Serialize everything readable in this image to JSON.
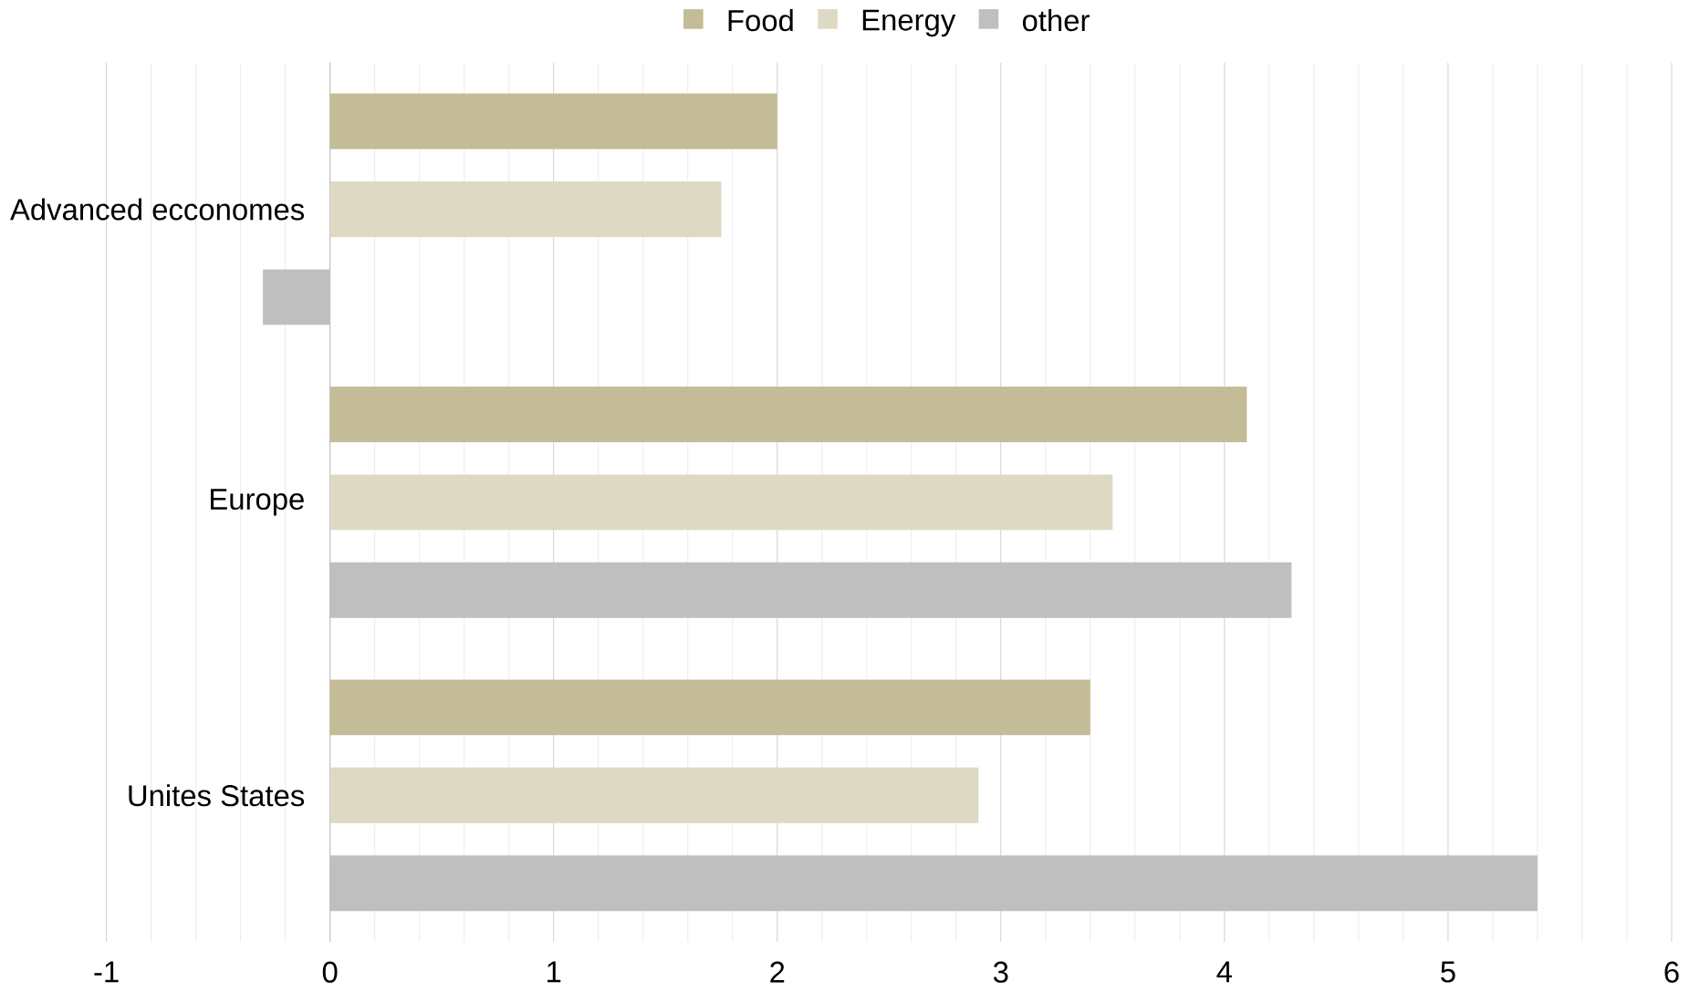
{
  "chart_data": {
    "type": "bar",
    "orientation": "horizontal",
    "categories": [
      "Advanced ecconomes",
      "Europe",
      "Unites States"
    ],
    "series": [
      {
        "name": "Food",
        "color": "#c4bc96",
        "values": [
          2.0,
          4.1,
          3.4
        ]
      },
      {
        "name": "Energy",
        "color": "#ddd9c3",
        "values": [
          1.75,
          3.5,
          2.9
        ]
      },
      {
        "name": "other",
        "color": "#bfbfbf",
        "values": [
          -0.3,
          4.3,
          5.4
        ]
      }
    ],
    "xlim": [
      -1,
      6
    ],
    "xticks": [
      -1,
      0,
      1,
      2,
      3,
      4,
      5,
      6
    ],
    "grid": "x",
    "legend": "top"
  }
}
